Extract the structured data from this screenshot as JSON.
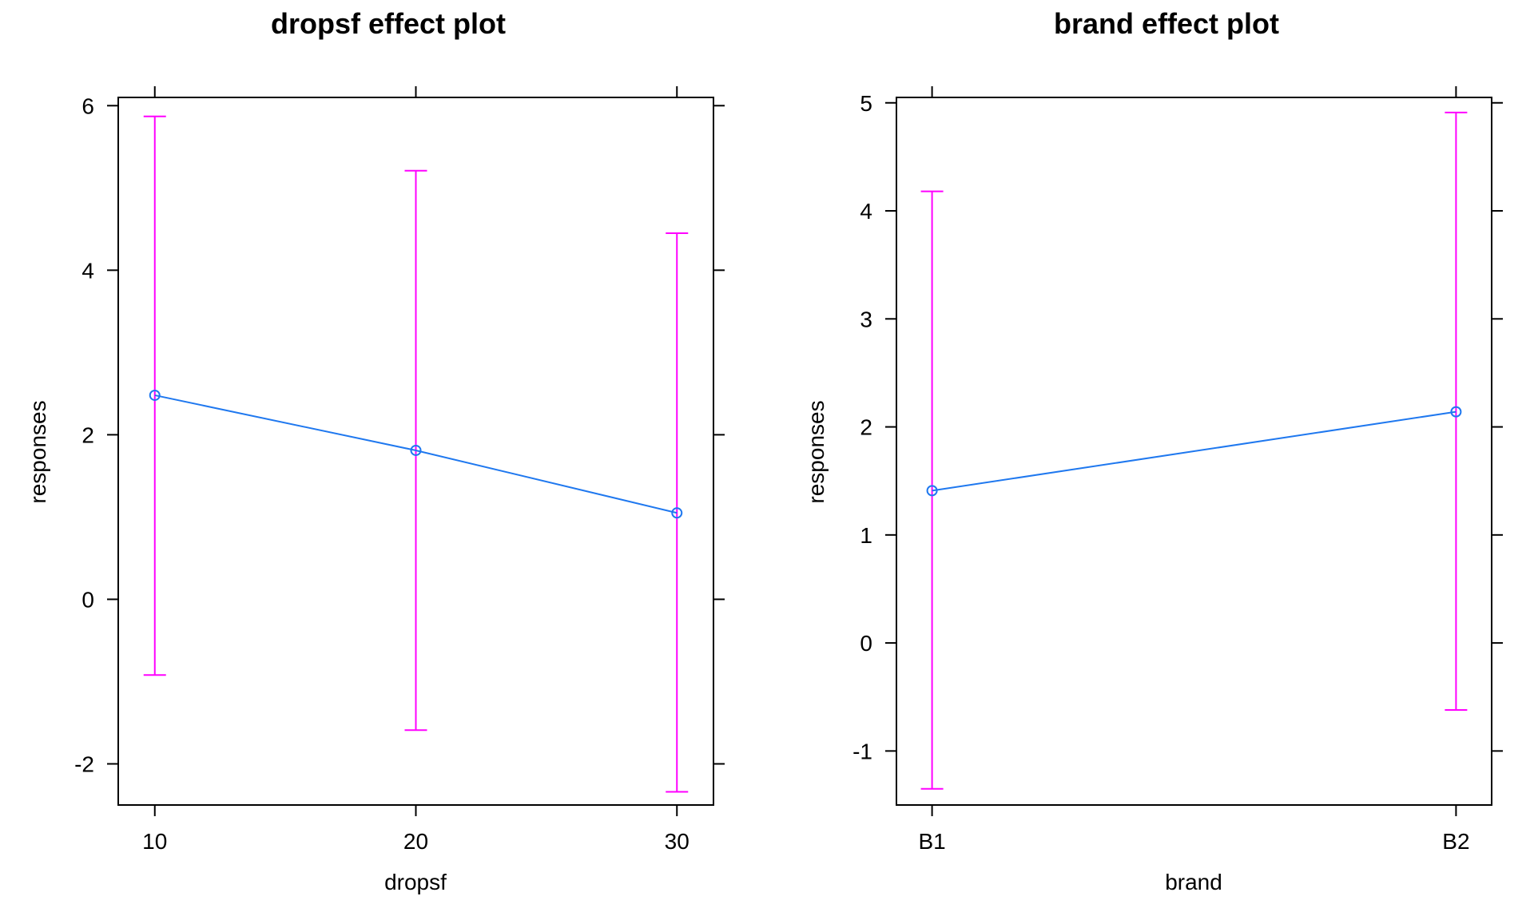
{
  "chart_data": [
    {
      "type": "line",
      "title": "dropsf effect plot",
      "xlabel": "dropsf",
      "ylabel": "responses",
      "x": [
        10,
        20,
        30
      ],
      "x_tick_labels": [
        "10",
        "20",
        "30"
      ],
      "xlim": [
        8.6,
        31.4
      ],
      "ylim": [
        -2.5,
        6.1
      ],
      "y_ticks": [
        6,
        4,
        2,
        0,
        -2
      ],
      "y_tick_labels": [
        "6",
        "4",
        "2",
        "0",
        "-2"
      ],
      "fit": [
        2.48,
        1.81,
        1.05
      ],
      "lower": [
        -0.92,
        -1.59,
        -2.34
      ],
      "upper": [
        5.87,
        5.21,
        4.45
      ],
      "grid": false,
      "colors": {
        "line": "#1f78ef",
        "ci": "#ff00ff",
        "axis": "#000000"
      }
    },
    {
      "type": "line",
      "title": "brand effect plot",
      "xlabel": "brand",
      "ylabel": "responses",
      "x": [
        1,
        2
      ],
      "x_tick_labels": [
        "B1",
        "B2"
      ],
      "xlim": [
        0.932,
        2.068
      ],
      "ylim": [
        -1.5,
        5.05
      ],
      "y_ticks": [
        5,
        4,
        3,
        2,
        1,
        0,
        -1
      ],
      "y_tick_labels": [
        "5",
        "4",
        "3",
        "2",
        "1",
        "0",
        "-1"
      ],
      "fit": [
        1.41,
        2.14
      ],
      "lower": [
        -1.35,
        -0.62
      ],
      "upper": [
        4.18,
        4.91
      ],
      "grid": false,
      "colors": {
        "line": "#1f78ef",
        "ci": "#ff00ff",
        "axis": "#000000"
      }
    }
  ]
}
